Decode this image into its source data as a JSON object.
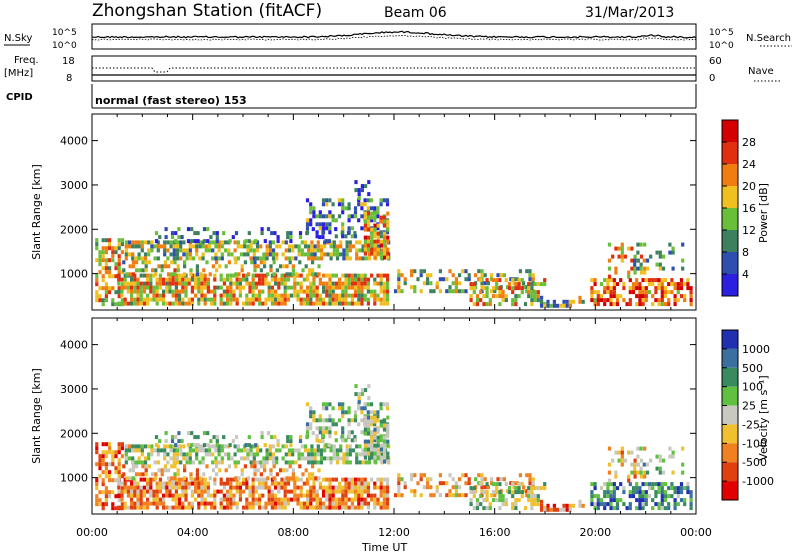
{
  "header": {
    "station": "Zhongshan Station (fitACF)",
    "beam": "Beam 06",
    "date": "31/Mar/2013"
  },
  "noise_panel": {
    "left_label": "N.Sky",
    "right_label": "N.Search",
    "left_ticks": [
      "10^5",
      "10^0"
    ],
    "right_ticks": [
      "10^5",
      "10^0"
    ]
  },
  "freq_panel": {
    "left_label_1": "Freq.",
    "left_label_2": "[MHz]",
    "right_label": "Nave",
    "left_ticks": [
      "18",
      "8"
    ],
    "right_ticks": [
      "60",
      "0"
    ]
  },
  "cpid": {
    "label": "CPID",
    "mode": "normal (fast stereo) 153"
  },
  "chart_data": [
    {
      "type": "heatmap",
      "name": "Power",
      "ylabel": "Slant Range [km]",
      "xlabel": "",
      "x_ticks": [
        "00:00",
        "04:00",
        "08:00",
        "12:00",
        "16:00",
        "20:00",
        "00:00"
      ],
      "x_range_hours": [
        0,
        24
      ],
      "y_ticks": [
        "1000",
        "2000",
        "3000",
        "4000"
      ],
      "y_range_km": [
        180,
        4600
      ],
      "colorbar_label": "Power [dB]",
      "colorbar_ticks": [
        "4",
        "8",
        "12",
        "16",
        "20",
        "24",
        "28"
      ],
      "colorbar_range": [
        0,
        30
      ],
      "colors": [
        "#2b20e0",
        "#2f4fb0",
        "#3d8060",
        "#6abf3a",
        "#f0c020",
        "#f07d10",
        "#e03010",
        "#d40000"
      ]
    },
    {
      "type": "heatmap",
      "name": "Velocity",
      "ylabel": "Slant Range [km]",
      "xlabel": "Time UT",
      "x_ticks": [
        "00:00",
        "04:00",
        "08:00",
        "12:00",
        "16:00",
        "20:00",
        "00:00"
      ],
      "x_range_hours": [
        0,
        24
      ],
      "y_ticks": [
        "1000",
        "2000",
        "3000",
        "4000"
      ],
      "y_range_km": [
        180,
        4600
      ],
      "colorbar_label": "Velocity [m s⁻¹]",
      "colorbar_ticks": [
        "1000",
        "500",
        "100",
        "25",
        "-25",
        "-100",
        "-500",
        "-1000"
      ],
      "colors": [
        "#2030b0",
        "#3a70a0",
        "#3a8a60",
        "#60c040",
        "#c8c8c0",
        "#f0c030",
        "#f08020",
        "#e04010",
        "#e00000"
      ]
    }
  ]
}
